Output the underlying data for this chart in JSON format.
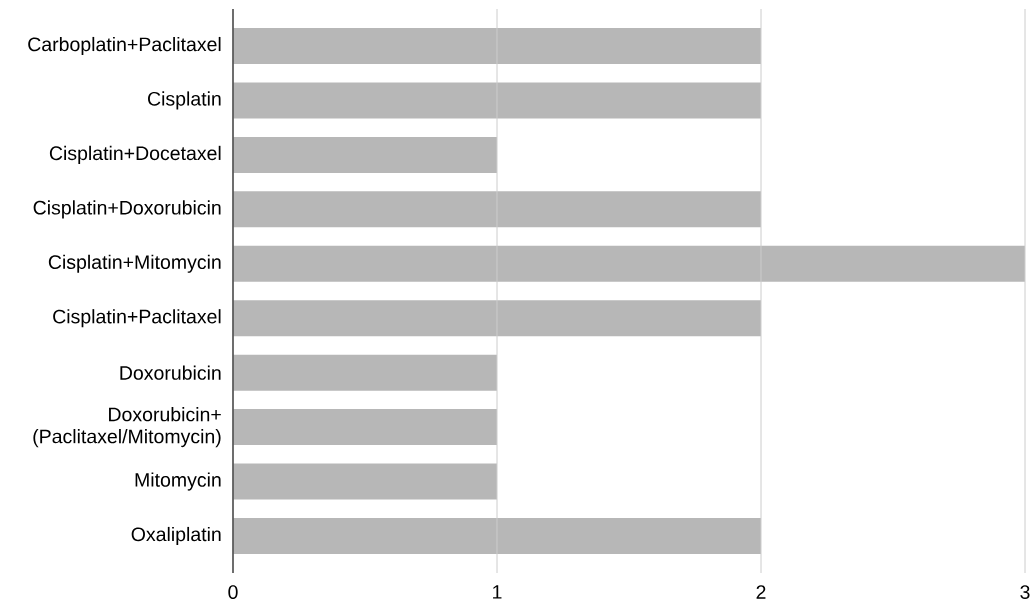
{
  "chart_data": {
    "type": "bar",
    "orientation": "horizontal",
    "categories": [
      "Carboplatin+Paclitaxel",
      "Cisplatin",
      "Cisplatin+Docetaxel",
      "Cisplatin+Doxorubicin",
      "Cisplatin+Mitomycin",
      "Cisplatin+Paclitaxel",
      "Doxorubicin",
      "Doxorubicin+(Paclitaxel/Mitomycin)",
      "Mitomycin",
      "Oxaliplatin"
    ],
    "values": [
      2,
      2,
      1,
      2,
      3,
      2,
      1,
      1,
      1,
      2
    ],
    "color": "#b7b7b7",
    "xlim": [
      0,
      3
    ],
    "xticks": [
      0,
      1,
      2,
      3
    ],
    "grid": "x"
  }
}
